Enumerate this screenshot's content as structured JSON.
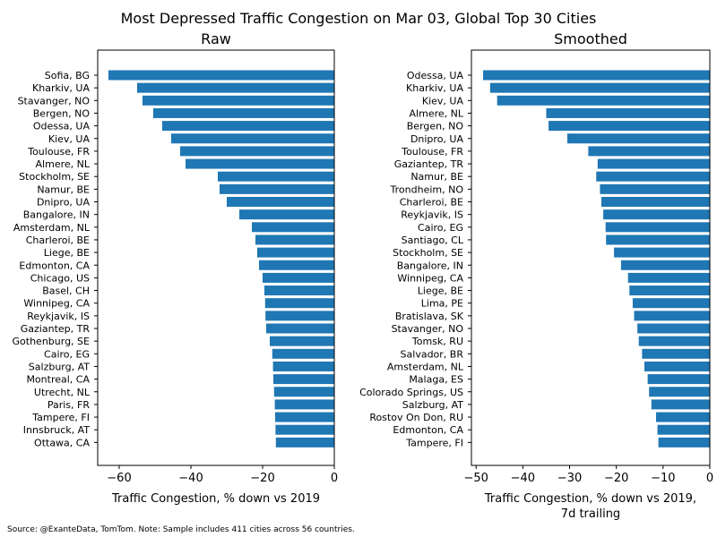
{
  "title": "Most Depressed Traffic Congestion on Mar 03, Global Top 30 Cities",
  "source_note": "Source: @ExanteData, TomTom.   Note: Sample includes 411 cities across 56 countries.",
  "chart_data": [
    {
      "type": "bar",
      "orientation": "horizontal",
      "title": "Raw",
      "xlabel": "Traffic Congestion, % down vs 2019",
      "xlabel2": "",
      "xlim": [
        -66,
        0
      ],
      "xticks": [
        -60,
        -40,
        -20,
        0
      ],
      "xtick_labels": [
        "−60",
        "−40",
        "−20",
        "0"
      ],
      "categories": [
        "Sofia, BG",
        "Kharkiv, UA",
        "Stavanger, NO",
        "Bergen, NO",
        "Odessa, UA",
        "Kiev, UA",
        "Toulouse, FR",
        "Almere, NL",
        "Stockholm, SE",
        "Namur, BE",
        "Dnipro, UA",
        "Bangalore, IN",
        "Amsterdam, NL",
        "Charleroi, BE",
        "Liege, BE",
        "Edmonton, CA",
        "Chicago, US",
        "Basel, CH",
        "Winnipeg, CA",
        "Reykjavik, IS",
        "Gaziantep, TR",
        "Gothenburg, SE",
        "Cairo, EG",
        "Salzburg, AT",
        "Montreal, CA",
        "Utrecht, NL",
        "Paris, FR",
        "Tampere, FI",
        "Innsbruck, AT",
        "Ottawa, CA"
      ],
      "values": [
        -63,
        -55,
        -53.5,
        -50.5,
        -48,
        -45.5,
        -43,
        -41.5,
        -32.5,
        -32,
        -30,
        -26.5,
        -23,
        -22,
        -21.5,
        -21,
        -20,
        -19.5,
        -19.3,
        -19.2,
        -19,
        -18,
        -17.3,
        -17.1,
        -17,
        -16.8,
        -16.6,
        -16.5,
        -16.4,
        -16.3
      ]
    },
    {
      "type": "bar",
      "orientation": "horizontal",
      "title": "Smoothed",
      "xlabel": "Traffic Congestion, % down vs 2019,",
      "xlabel2": "7d trailing",
      "xlim": [
        -51,
        0
      ],
      "xticks": [
        -50,
        -40,
        -30,
        -20,
        -10,
        0
      ],
      "xtick_labels": [
        "−50",
        "−40",
        "−30",
        "−20",
        "−10",
        "0"
      ],
      "categories": [
        "Odessa, UA",
        "Kharkiv, UA",
        "Kiev, UA",
        "Almere, NL",
        "Bergen, NO",
        "Dnipro, UA",
        "Toulouse, FR",
        "Gaziantep, TR",
        "Namur, BE",
        "Trondheim, NO",
        "Charleroi, BE",
        "Reykjavik, IS",
        "Cairo, EG",
        "Santiago, CL",
        "Stockholm, SE",
        "Bangalore, IN",
        "Winnipeg, CA",
        "Liege, BE",
        "Lima, PE",
        "Bratislava, SK",
        "Stavanger, NO",
        "Tomsk, RU",
        "Salvador, BR",
        "Amsterdam, NL",
        "Malaga, ES",
        "Colorado Springs, US",
        "Salzburg, AT",
        "Rostov On Don, RU",
        "Edmonton, CA",
        "Tampere, FI"
      ],
      "values": [
        -48.5,
        -47,
        -45.5,
        -35,
        -34.5,
        -30.5,
        -26,
        -24,
        -24.3,
        -23.5,
        -23.2,
        -22.8,
        -22.3,
        -22.2,
        -20.5,
        -19,
        -17.5,
        -17.2,
        -16.5,
        -16.2,
        -15.5,
        -15.2,
        -14.5,
        -14,
        -13.3,
        -13,
        -12.5,
        -11.5,
        -11.2,
        -11
      ]
    }
  ]
}
